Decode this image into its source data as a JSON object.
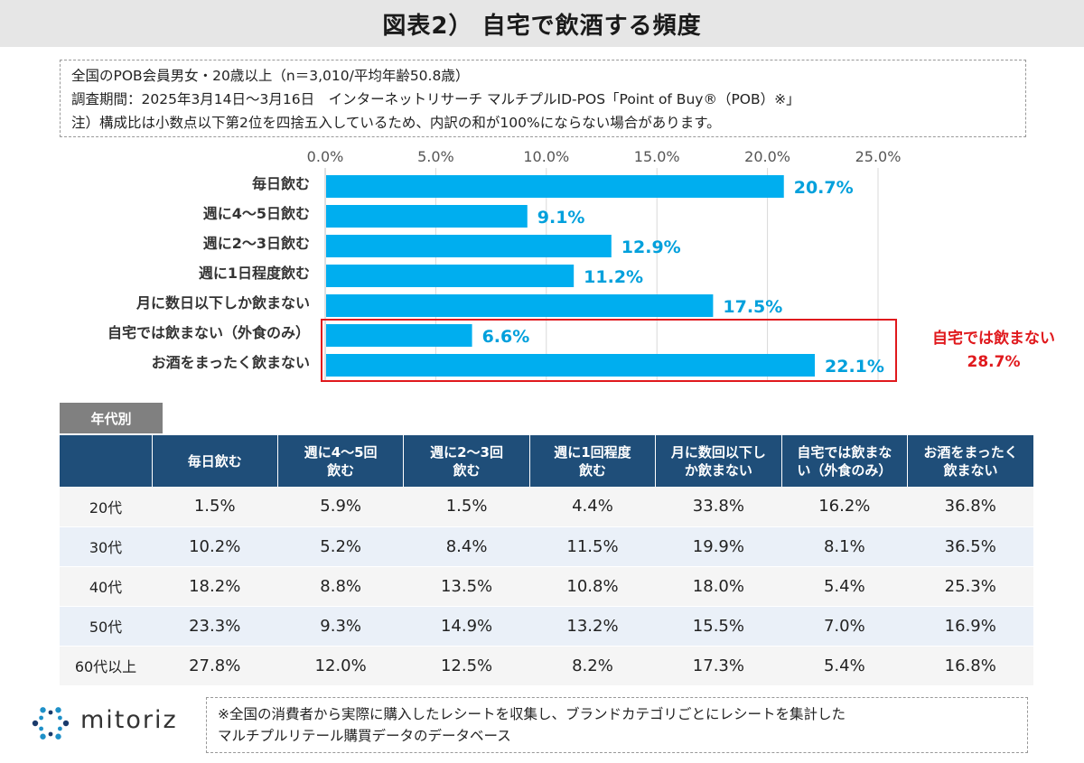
{
  "title": "図表2） 自宅で飲酒する頻度",
  "info": {
    "line1": "全国のPOB会員男女・20歳以上（n＝3,010/平均年齢50.8歳）",
    "line2": "調査期間：2025年3月14日～3月16日　インターネットリサーチ マルチプルID-POS「Point of Buy®（POB）※」",
    "line3": "注）構成比は小数点以下第2位を四捨五入しているため、内訳の和が100%にならない場合があります。"
  },
  "chart_data": {
    "type": "bar",
    "orientation": "horizontal",
    "categories": [
      "毎日飲む",
      "週に4～5日飲む",
      "週に2～3日飲む",
      "週に1日程度飲む",
      "月に数日以下しか飲まない",
      "自宅では飲まない（外食のみ）",
      "お酒をまったく飲まない"
    ],
    "values": [
      20.7,
      9.1,
      12.9,
      11.2,
      17.5,
      6.6,
      22.1
    ],
    "value_labels": [
      "20.7%",
      "9.1%",
      "12.9%",
      "11.2%",
      "17.5%",
      "6.6%",
      "22.1%"
    ],
    "xlim": [
      0,
      25
    ],
    "ticks": [
      "0.0%",
      "5.0%",
      "10.0%",
      "15.0%",
      "20.0%",
      "25.0%"
    ],
    "tick_values": [
      0,
      5,
      10,
      15,
      20,
      25
    ],
    "axis_position": "top",
    "grid": true,
    "bar_color": "#00aeef",
    "label_color": "#00a0dc",
    "highlight_color": "#e0191d",
    "annotation": {
      "line1": "自宅では飲まない",
      "line2": "28.7%"
    }
  },
  "age_table": {
    "tag": "年代別",
    "headers": [
      "毎日飲む",
      "週に4～5回\n飲む",
      "週に2～3回\n飲む",
      "週に1回程度\n飲む",
      "月に数回以下し\nか飲まない",
      "自宅では飲まな\nい（外食のみ）",
      "お酒をまったく\n飲まない"
    ],
    "rows": [
      {
        "age": "20代",
        "values": [
          "1.5%",
          "5.9%",
          "1.5%",
          "4.4%",
          "33.8%",
          "16.2%",
          "36.8%"
        ]
      },
      {
        "age": "30代",
        "values": [
          "10.2%",
          "5.2%",
          "8.4%",
          "11.5%",
          "19.9%",
          "8.1%",
          "36.5%"
        ]
      },
      {
        "age": "40代",
        "values": [
          "18.2%",
          "8.8%",
          "13.5%",
          "10.8%",
          "18.0%",
          "5.4%",
          "25.3%"
        ]
      },
      {
        "age": "50代",
        "values": [
          "23.3%",
          "9.3%",
          "14.9%",
          "13.2%",
          "15.5%",
          "7.0%",
          "16.9%"
        ]
      },
      {
        "age": "60代以上",
        "values": [
          "27.8%",
          "12.0%",
          "12.5%",
          "8.2%",
          "17.3%",
          "5.4%",
          "16.8%"
        ]
      }
    ]
  },
  "logo": {
    "text": "mitoriz",
    "icon": "mitoriz-logo-icon",
    "color": "#1e90c8"
  },
  "footnote": {
    "line1": "※全国の消費者から実際に購入したレシートを収集し、ブランドカテゴリごとにレシートを集計した",
    "line2": "マルチプルリテール購買データのデータベース"
  }
}
